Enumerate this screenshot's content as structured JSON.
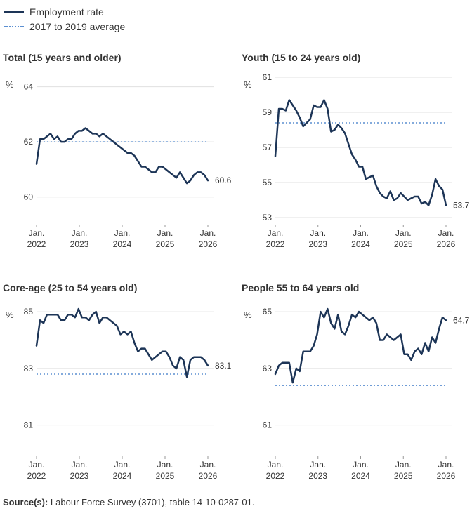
{
  "legend": {
    "items": [
      {
        "label": "Employment rate",
        "style": "solid",
        "color": "#1d3557"
      },
      {
        "label": "2017 to 2019 average",
        "style": "dotted",
        "color": "#5b8fd1"
      }
    ]
  },
  "colors": {
    "line": "#1d3557",
    "average": "#5b8fd1",
    "grid": "#e0e0e0",
    "text": "#333333"
  },
  "unit_label": "%",
  "x_ticks": [
    {
      "month": "Jan.",
      "year": "2022"
    },
    {
      "month": "Jan.",
      "year": "2023"
    },
    {
      "month": "Jan.",
      "year": "2024"
    },
    {
      "month": "Jan.",
      "year": "2025"
    },
    {
      "month": "Jan.",
      "year": "2026"
    }
  ],
  "chart_data": [
    {
      "type": "line",
      "title": "Total (15 years and older)",
      "ylabel": "%",
      "ylim": [
        59,
        64.6
      ],
      "yticks": [
        60,
        62,
        64
      ],
      "average": 62.0,
      "end_label": "60.6",
      "x_range": [
        0,
        50
      ],
      "values": [
        61.2,
        62.1,
        62.1,
        62.2,
        62.3,
        62.1,
        62.2,
        62.0,
        62.0,
        62.1,
        62.1,
        62.3,
        62.4,
        62.4,
        62.5,
        62.4,
        62.3,
        62.3,
        62.2,
        62.3,
        62.2,
        62.1,
        62.0,
        61.9,
        61.8,
        61.7,
        61.6,
        61.6,
        61.5,
        61.3,
        61.1,
        61.1,
        61.0,
        60.9,
        60.9,
        61.1,
        61.1,
        61.0,
        60.9,
        60.8,
        60.7,
        60.9,
        60.7,
        60.5,
        60.6,
        60.8,
        60.9,
        60.9,
        60.8,
        60.6
      ]
    },
    {
      "type": "line",
      "title": "Youth (15 to 24 years old)",
      "ylabel": "%",
      "ylim": [
        52.6,
        61.4
      ],
      "yticks": [
        53,
        55,
        57,
        59,
        61
      ],
      "average": 58.4,
      "end_label": "53.7",
      "x_range": [
        0,
        50
      ],
      "values": [
        56.5,
        59.2,
        59.2,
        59.1,
        59.7,
        59.4,
        59.1,
        58.7,
        58.2,
        58.4,
        58.6,
        59.4,
        59.3,
        59.3,
        59.7,
        59.2,
        57.9,
        58.0,
        58.3,
        58.1,
        57.8,
        57.2,
        56.6,
        56.3,
        55.9,
        55.9,
        55.2,
        55.3,
        55.4,
        54.8,
        54.4,
        54.2,
        54.1,
        54.5,
        54.0,
        54.1,
        54.4,
        54.2,
        54.0,
        54.1,
        54.2,
        54.2,
        53.8,
        53.9,
        53.7,
        54.3,
        55.2,
        54.8,
        54.6,
        53.7
      ]
    },
    {
      "type": "line",
      "title": "Core-age (25 to 54 years old)",
      "ylabel": "%",
      "ylim": [
        79.9,
        85.4
      ],
      "yticks": [
        81,
        83,
        85
      ],
      "average": 82.8,
      "end_label": "83.1",
      "x_range": [
        0,
        50
      ],
      "values": [
        83.8,
        84.7,
        84.6,
        84.9,
        84.9,
        84.9,
        84.9,
        84.7,
        84.7,
        84.9,
        84.9,
        84.8,
        85.1,
        84.8,
        84.8,
        84.7,
        84.9,
        85.0,
        84.6,
        84.8,
        84.8,
        84.7,
        84.6,
        84.5,
        84.2,
        84.3,
        84.2,
        84.3,
        83.9,
        83.6,
        83.7,
        83.7,
        83.5,
        83.3,
        83.4,
        83.5,
        83.6,
        83.6,
        83.4,
        83.1,
        83.0,
        83.4,
        83.3,
        82.7,
        83.3,
        83.4,
        83.4,
        83.4,
        83.3,
        83.1
      ]
    },
    {
      "type": "line",
      "title": "People 55 to 64 years old",
      "ylabel": "%",
      "ylim": [
        59.9,
        65.4
      ],
      "yticks": [
        61,
        63,
        65
      ],
      "average": 62.4,
      "end_label": "64.7",
      "x_range": [
        0,
        50
      ],
      "values": [
        62.8,
        63.1,
        63.2,
        63.2,
        63.2,
        62.5,
        63.0,
        62.9,
        63.6,
        63.6,
        63.6,
        63.8,
        64.2,
        65.0,
        64.8,
        65.1,
        64.6,
        64.4,
        64.9,
        64.3,
        64.2,
        64.5,
        64.9,
        64.8,
        65.0,
        64.9,
        64.8,
        64.7,
        64.8,
        64.6,
        64.0,
        64.0,
        64.2,
        64.1,
        64.0,
        64.1,
        64.2,
        63.5,
        63.5,
        63.3,
        63.6,
        63.7,
        63.5,
        63.9,
        63.6,
        64.1,
        63.9,
        64.4,
        64.8,
        64.7
      ]
    }
  ],
  "footer": {
    "source_label": "Source(s):",
    "source_text": "Labour Force Survey (3701), table 14-10-0287-01."
  }
}
